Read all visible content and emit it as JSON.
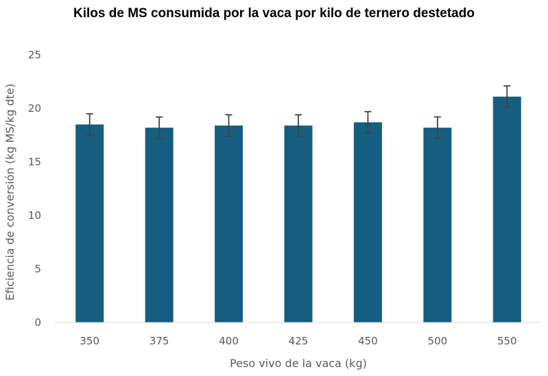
{
  "chart_data": {
    "type": "bar",
    "title": "Kilos de MS consumida por la vaca por kilo de ternero destetado",
    "xlabel": "Peso vivo de la vaca (kg)",
    "ylabel": "Eficiencia de conversión (kg MS/kg dte)",
    "categories": [
      "350",
      "375",
      "400",
      "425",
      "450",
      "500",
      "550"
    ],
    "values": [
      18.5,
      18.2,
      18.4,
      18.4,
      18.7,
      18.2,
      21.1
    ],
    "error_low": [
      17.5,
      17.2,
      17.4,
      17.4,
      17.7,
      17.2,
      20.1
    ],
    "error_high": [
      19.5,
      19.2,
      19.4,
      19.4,
      19.7,
      19.2,
      22.1
    ],
    "ylim": [
      0,
      25
    ],
    "yticks": [
      "0",
      "5",
      "10",
      "15",
      "20",
      "25"
    ],
    "grid": false,
    "colors": {
      "bar": "#165E80",
      "error_bar": "#404040",
      "axis": "#D9D9D9",
      "text": "#595959"
    }
  }
}
